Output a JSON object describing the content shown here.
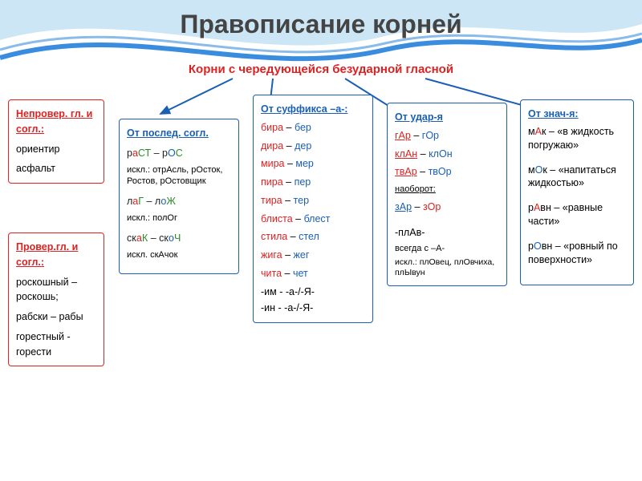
{
  "title": "Правописание корней",
  "subtitle": "Корни с чередующейся безударной гласной",
  "subtitle_color": "#d22",
  "wave_colors": {
    "top": "#cce6f5",
    "bottom": "#3a8dde"
  },
  "arrow_color": "#1a5fb4",
  "box_unverified": {
    "border_color": "#d22",
    "header": "Непровер. гл. и согл.:",
    "lines": [
      "ориентир",
      "асфальт"
    ]
  },
  "box_verified": {
    "border_color": "#d22",
    "header": "Провер.гл. и согл.:",
    "pairs": [
      [
        "роскошный –",
        "роскошь;"
      ],
      [
        "рабски – рабы"
      ],
      [
        "горестный -",
        "горести"
      ]
    ]
  },
  "box_consonant": {
    "border_color": "#1a5fb4",
    "header": "От послед. согл.",
    "rows": [
      {
        "fragments": [
          [
            "р",
            "black"
          ],
          [
            "а",
            "red"
          ],
          [
            "СТ",
            "green"
          ],
          [
            " – р",
            "black"
          ],
          [
            "О",
            "blue"
          ],
          [
            "С",
            "green"
          ]
        ]
      },
      {
        "text": "искл.: отрАсль, рОсток, Ростов, рОстовщик",
        "class": "black",
        "small": true
      },
      {
        "fragments": [
          [
            "л",
            "black"
          ],
          [
            "а",
            "red"
          ],
          [
            "Г",
            "green"
          ],
          [
            " – л",
            "black"
          ],
          [
            "о",
            "blue"
          ],
          [
            "Ж",
            "green"
          ]
        ]
      },
      {
        "text": "искл.: полОг",
        "class": "black",
        "small": true
      },
      {
        "fragments": [
          [
            "ск",
            "black"
          ],
          [
            "а",
            "red"
          ],
          [
            "К",
            "green"
          ],
          [
            " – ск",
            "black"
          ],
          [
            "о",
            "blue"
          ],
          [
            "Ч",
            "green"
          ]
        ]
      },
      {
        "text": "искл. скАчок",
        "class": "black",
        "small": true
      }
    ]
  },
  "box_suffix": {
    "border_color": "#1a5fb4",
    "header": "От суффикса –а-:",
    "pairs": [
      [
        "бира",
        "бер"
      ],
      [
        "дира",
        "дер"
      ],
      [
        "мира",
        "мер"
      ],
      [
        "пира",
        "пер"
      ],
      [
        "тира",
        "тер"
      ],
      [
        "блиста",
        "блест"
      ],
      [
        "стила",
        "стел"
      ],
      [
        "жига",
        "жег"
      ],
      [
        "чита",
        "чет"
      ]
    ],
    "tail": [
      "-им - -а-/-Я-",
      "-ин - -а-/-Я-"
    ]
  },
  "box_stress": {
    "border_color": "#1a5fb4",
    "header": "От удар-я",
    "pairs_red": [
      [
        "гАр",
        "гОр"
      ],
      [
        "клАн",
        "клОн"
      ],
      [
        "твАр",
        "твОр"
      ]
    ],
    "naobrot": "наоборот:",
    "pair_blue": [
      "зАр",
      "зОр"
    ],
    "plav_title": "-плАв-",
    "plav_note1": "всегда с –А-",
    "plav_note2": "искл.: плОвец, плОвчиха, плЫвун"
  },
  "box_meaning": {
    "border_color": "#1a5fb4",
    "header": "От знач-я:",
    "items": [
      {
        "root_pre": "м",
        "v": "А",
        "root_post": "к",
        "vclass": "red",
        "gloss": "– «в жидкость погружаю»"
      },
      {
        "root_pre": "м",
        "v": "О",
        "root_post": "к",
        "vclass": "blue",
        "gloss": "– «напитаться жидкостью»"
      },
      {
        "root_pre": "р",
        "v": "А",
        "root_post": "вн",
        "vclass": "red",
        "gloss": "– «равные части»"
      },
      {
        "root_pre": "р",
        "v": "О",
        "root_post": "вн",
        "vclass": "blue",
        "gloss": "– «ровный по поверхности»"
      }
    ]
  }
}
